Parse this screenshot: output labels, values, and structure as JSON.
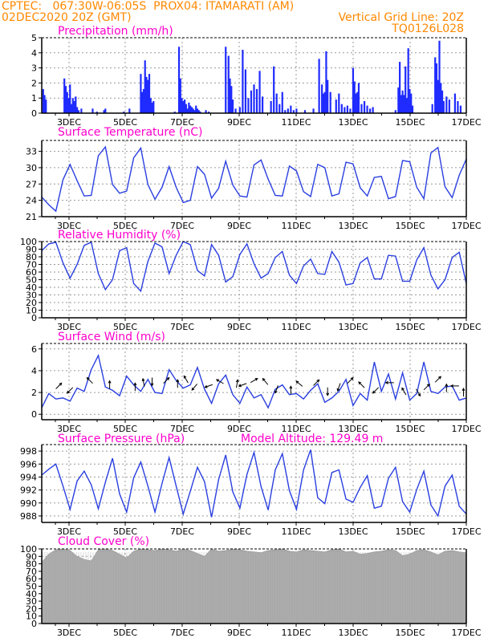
{
  "header": {
    "line1_left": "CPTEC:   067:30W-06:05S  PROX04: ITAMARATI (AM)",
    "line2_left": "02DEC2020 20Z (GMT)",
    "line2_right": "Vertical Grid Line: 20Z",
    "line3_right": "TQ0126L028"
  },
  "colors": {
    "header_text": "#ff8800",
    "title_text": "#ff00cc",
    "series_line": "#2a3fe0",
    "bar_blue": "#1f2bff",
    "cloud_gray": "#a8a8a8",
    "wind_arrow": "#000000"
  },
  "chart_data": [
    {
      "id": "precip",
      "type": "bar",
      "title": "Precipitation (mm/h)",
      "x_range": [
        0,
        15
      ],
      "x_ticks": [
        "3DEC",
        "5DEC",
        "7DEC",
        "9DEC",
        "11DEC",
        "13DEC",
        "15DEC",
        "17DEC"
      ],
      "ylim": [
        0,
        5
      ],
      "yticks": [
        0,
        1,
        2,
        3,
        4,
        5
      ],
      "grid": true,
      "x": [
        0.05,
        0.1,
        0.15,
        0.8,
        0.85,
        0.9,
        0.95,
        1.0,
        1.05,
        1.1,
        1.15,
        1.2,
        1.25,
        1.3,
        1.4,
        1.8,
        1.95,
        2.2,
        2.25,
        2.9,
        3.1,
        3.5,
        3.55,
        3.6,
        3.65,
        3.7,
        3.75,
        3.8,
        3.85,
        3.9,
        3.95,
        4.7,
        4.85,
        4.9,
        4.95,
        5.0,
        5.05,
        5.1,
        5.15,
        5.2,
        5.25,
        5.3,
        5.35,
        5.4,
        5.45,
        5.5,
        5.55,
        5.6,
        5.8,
        5.9,
        6.5,
        6.6,
        6.65,
        6.7,
        6.75,
        6.85,
        7.0,
        7.1,
        7.2,
        7.3,
        7.4,
        7.5,
        7.6,
        7.7,
        7.8,
        8.1,
        8.2,
        8.3,
        8.4,
        8.5,
        8.6,
        8.7,
        8.8,
        8.9,
        9.0,
        9.3,
        9.6,
        9.8,
        9.9,
        9.95,
        10.0,
        10.05,
        10.1,
        10.2,
        10.4,
        10.5,
        10.6,
        10.7,
        10.8,
        10.9,
        11.0,
        11.05,
        11.1,
        11.15,
        11.2,
        11.3,
        11.4,
        11.5,
        11.6,
        11.7,
        12.5,
        12.6,
        12.65,
        12.7,
        12.75,
        12.8,
        12.85,
        12.9,
        12.95,
        13.0,
        13.05,
        13.1,
        13.8,
        13.9,
        13.95,
        14.0,
        14.05,
        14.1,
        14.15,
        14.2,
        14.3,
        14.4,
        14.6,
        14.7,
        14.8
      ],
      "values": [
        1.6,
        1.2,
        0.9,
        2.3,
        1.8,
        1.4,
        1.0,
        1.9,
        0.6,
        1.0,
        0.8,
        1.1,
        0.4,
        0.2,
        0.3,
        0.3,
        0.1,
        0.2,
        0.3,
        0.1,
        0.3,
        2.6,
        1.4,
        1.6,
        3.5,
        2.4,
        2.2,
        2.6,
        1.0,
        0.7,
        0.8,
        0.1,
        4.4,
        2.3,
        1.0,
        0.8,
        0.9,
        0.6,
        0.3,
        0.7,
        0.5,
        0.4,
        0.3,
        0.2,
        0.5,
        0.3,
        0.2,
        0.1,
        0.2,
        0.1,
        4.4,
        3.8,
        2.3,
        1.8,
        0.9,
        0.3,
        0.4,
        4.2,
        2.9,
        1.0,
        1.5,
        1.9,
        1.6,
        2.8,
        1.1,
        0.8,
        3.1,
        1.3,
        0.6,
        1.4,
        0.2,
        0.3,
        0.5,
        0.2,
        0.3,
        0.2,
        0.3,
        3.6,
        1.9,
        1.3,
        1.4,
        4.1,
        2.2,
        1.4,
        0.9,
        1.3,
        0.6,
        0.4,
        0.5,
        0.3,
        3.0,
        2.1,
        1.3,
        1.4,
        2.0,
        0.6,
        0.8,
        0.5,
        0.3,
        0.4,
        0.2,
        1.7,
        3.4,
        1.2,
        1.5,
        1.2,
        3.1,
        1.0,
        4.3,
        1.6,
        1.3,
        0.5,
        0.6,
        3.7,
        3.3,
        2.2,
        4.8,
        2.0,
        1.5,
        0.8,
        1.1,
        0.9,
        1.3,
        0.8,
        0.5
      ]
    },
    {
      "id": "temp",
      "type": "line",
      "title": "Surface Temperature (nC)",
      "x_range": [
        0,
        15
      ],
      "x_ticks": [
        "3DEC",
        "5DEC",
        "7DEC",
        "9DEC",
        "11DEC",
        "13DEC",
        "15DEC",
        "17DEC"
      ],
      "ylim": [
        21,
        35
      ],
      "yticks": [
        21,
        24,
        27,
        30,
        33
      ],
      "grid": true,
      "x": [
        0,
        0.25,
        0.5,
        0.75,
        1.0,
        1.25,
        1.5,
        1.75,
        2.0,
        2.25,
        2.5,
        2.75,
        3.0,
        3.25,
        3.5,
        3.75,
        4.0,
        4.25,
        4.5,
        4.75,
        5.0,
        5.25,
        5.5,
        5.75,
        6.0,
        6.25,
        6.5,
        6.75,
        7.0,
        7.25,
        7.5,
        7.75,
        8.0,
        8.25,
        8.5,
        8.75,
        9.0,
        9.25,
        9.5,
        9.75,
        10.0,
        10.25,
        10.5,
        10.75,
        11.0,
        11.25,
        11.5,
        11.75,
        12.0,
        12.25,
        12.5,
        12.75,
        13.0,
        13.25,
        13.5,
        13.75,
        14.0,
        14.25,
        14.5,
        14.75,
        15.0
      ],
      "values": [
        24.6,
        23.2,
        22.0,
        27.8,
        30.6,
        27.6,
        24.8,
        24.9,
        32.2,
        33.8,
        26.9,
        25.3,
        25.7,
        31.8,
        33.6,
        26.9,
        24.2,
        26.4,
        30.2,
        26.4,
        23.6,
        24.0,
        30.2,
        28.8,
        24.4,
        26.2,
        31.2,
        26.8,
        24.8,
        24.6,
        30.5,
        31.4,
        27.9,
        24.9,
        24.8,
        30.3,
        29.4,
        25.6,
        24.7,
        30.6,
        30.0,
        24.8,
        25.2,
        31.0,
        30.7,
        26.3,
        24.8,
        28.2,
        28.4,
        24.3,
        24.7,
        31.3,
        31.1,
        26.4,
        24.3,
        32.7,
        33.7,
        26.5,
        24.5,
        28.6,
        31.6
      ]
    },
    {
      "id": "rh",
      "type": "line",
      "title": "Relative Humidity (%)",
      "x_range": [
        0,
        15
      ],
      "x_ticks": [
        "3DEC",
        "5DEC",
        "7DEC",
        "9DEC",
        "11DEC",
        "13DEC",
        "15DEC",
        "17DEC"
      ],
      "ylim": [
        0,
        100
      ],
      "yticks": [
        0,
        10,
        20,
        30,
        40,
        50,
        60,
        70,
        80,
        90,
        100
      ],
      "grid": true,
      "x": [
        0,
        0.25,
        0.5,
        0.75,
        1.0,
        1.25,
        1.5,
        1.75,
        2.0,
        2.25,
        2.5,
        2.75,
        3.0,
        3.25,
        3.5,
        3.75,
        4.0,
        4.25,
        4.5,
        4.75,
        5.0,
        5.25,
        5.5,
        5.75,
        6.0,
        6.25,
        6.5,
        6.75,
        7.0,
        7.25,
        7.5,
        7.75,
        8.0,
        8.25,
        8.5,
        8.75,
        9.0,
        9.25,
        9.5,
        9.75,
        10.0,
        10.25,
        10.5,
        10.75,
        11.0,
        11.25,
        11.5,
        11.75,
        12.0,
        12.25,
        12.5,
        12.75,
        13.0,
        13.25,
        13.5,
        13.75,
        14.0,
        14.25,
        14.5,
        14.75,
        15.0
      ],
      "values": [
        88,
        97,
        99,
        72,
        52,
        70,
        95,
        99,
        58,
        37,
        50,
        88,
        92,
        45,
        35,
        74,
        98,
        93,
        58,
        82,
        100,
        96,
        62,
        55,
        96,
        82,
        47,
        54,
        83,
        97,
        71,
        52,
        58,
        79,
        87,
        56,
        45,
        68,
        77,
        58,
        57,
        87,
        73,
        43,
        45,
        72,
        79,
        51,
        51,
        82,
        81,
        48,
        48,
        76,
        92,
        56,
        38,
        50,
        79,
        86,
        45
      ]
    },
    {
      "id": "wind",
      "type": "line",
      "title": "Surface Wind (m/s)",
      "x_range": [
        0,
        15
      ],
      "x_ticks": [
        "3DEC",
        "5DEC",
        "7DEC",
        "9DEC",
        "11DEC",
        "13DEC",
        "15DEC",
        "17DEC"
      ],
      "ylim": [
        -0.5,
        6.5
      ],
      "yticks": [
        0,
        2,
        4,
        6
      ],
      "grid": true,
      "x": [
        0,
        0.25,
        0.5,
        0.75,
        1.0,
        1.25,
        1.5,
        1.75,
        2.0,
        2.25,
        2.5,
        2.75,
        3.0,
        3.25,
        3.5,
        3.75,
        4.0,
        4.25,
        4.5,
        4.75,
        5.0,
        5.25,
        5.5,
        5.75,
        6.0,
        6.25,
        6.5,
        6.75,
        7.0,
        7.25,
        7.5,
        7.75,
        8.0,
        8.25,
        8.5,
        8.75,
        9.0,
        9.25,
        9.5,
        9.75,
        10.0,
        10.25,
        10.5,
        10.75,
        11.0,
        11.25,
        11.5,
        11.75,
        12.0,
        12.25,
        12.5,
        12.75,
        13.0,
        13.25,
        13.5,
        13.75,
        14.0,
        14.25,
        14.5,
        14.75,
        15.0
      ],
      "values": [
        0.6,
        1.9,
        1.4,
        1.5,
        1.2,
        2.4,
        2.1,
        4.1,
        5.4,
        2.5,
        2.2,
        1.7,
        3.5,
        2.7,
        2.1,
        3.2,
        2.0,
        1.9,
        4.1,
        3.1,
        2.4,
        2.7,
        4.3,
        2.3,
        1.0,
        2.8,
        3.6,
        1.8,
        1.0,
        2.5,
        1.5,
        1.8,
        0.6,
        2.3,
        2.7,
        1.8,
        1.9,
        1.4,
        2.2,
        2.8,
        1.1,
        1.5,
        2.1,
        3.2,
        0.8,
        1.9,
        1.3,
        4.8,
        2.1,
        3.7,
        1.4,
        3.8,
        1.3,
        1.9,
        4.8,
        2.1,
        1.9,
        2.5,
        2.6,
        1.3,
        1.5
      ],
      "arrows": {
        "x": [
          0.6,
          1.0,
          1.7,
          2.4,
          3.3,
          3.6,
          3.9,
          4.4,
          4.8,
          5.1,
          5.4,
          5.9,
          6.3,
          6.9,
          7.1,
          7.5,
          7.9,
          8.3,
          8.8,
          9.1,
          9.7,
          10.1,
          10.5,
          10.9,
          11.3,
          11.8,
          12.3,
          12.8,
          13.3,
          13.6,
          14.0,
          14.3,
          14.6,
          14.9
        ],
        "y": [
          2.6,
          2.2,
          3.1,
          2.7,
          2.5,
          2.9,
          3.0,
          3.1,
          2.8,
          3.2,
          2.5,
          2.6,
          3.0,
          2.8,
          2.7,
          3.1,
          3.0,
          2.3,
          2.2,
          2.8,
          2.9,
          2.1,
          2.5,
          3.1,
          2.7,
          2.2,
          2.9,
          2.1,
          2.0,
          2.5,
          3.2,
          2.4,
          2.6,
          2.0
        ],
        "dir_deg": [
          45,
          225,
          135,
          90,
          90,
          100,
          270,
          45,
          90,
          120,
          230,
          200,
          150,
          80,
          200,
          30,
          130,
          250,
          90,
          140,
          45,
          270,
          250,
          45,
          135,
          225,
          180,
          120,
          300,
          45,
          45,
          90,
          180,
          90
        ]
      }
    },
    {
      "id": "pressure",
      "type": "line",
      "title": "Surface Pressure (hPa)",
      "annotation": "Model Altitude: 129.49 m",
      "x_range": [
        0,
        15
      ],
      "x_ticks": [
        "3DEC",
        "5DEC",
        "7DEC",
        "9DEC",
        "11DEC",
        "13DEC",
        "15DEC",
        "17DEC"
      ],
      "ylim": [
        987,
        999
      ],
      "yticks": [
        988,
        990,
        992,
        994,
        996,
        998
      ],
      "grid": true,
      "x": [
        0,
        0.25,
        0.5,
        0.75,
        1.0,
        1.25,
        1.5,
        1.75,
        2.0,
        2.25,
        2.5,
        2.75,
        3.0,
        3.25,
        3.5,
        3.75,
        4.0,
        4.25,
        4.5,
        4.75,
        5.0,
        5.25,
        5.5,
        5.75,
        6.0,
        6.25,
        6.5,
        6.75,
        7.0,
        7.25,
        7.5,
        7.75,
        8.0,
        8.25,
        8.5,
        8.75,
        9.0,
        9.25,
        9.5,
        9.75,
        10.0,
        10.25,
        10.5,
        10.75,
        11.0,
        11.25,
        11.5,
        11.75,
        12.0,
        12.25,
        12.5,
        12.75,
        13.0,
        13.25,
        13.5,
        13.75,
        14.0,
        14.25,
        14.5,
        14.75,
        15.0
      ],
      "values": [
        994.3,
        995.2,
        996.0,
        992.6,
        989.0,
        993.4,
        994.9,
        992.8,
        989.1,
        993.2,
        996.9,
        991.4,
        988.6,
        993.9,
        996.3,
        992.6,
        988.6,
        993.0,
        997.0,
        992.6,
        988.3,
        991.8,
        995.5,
        993.3,
        987.8,
        993.6,
        997.4,
        991.7,
        989.2,
        994.4,
        997.8,
        992.5,
        988.9,
        995.1,
        997.6,
        991.9,
        989.0,
        995.1,
        998.2,
        990.8,
        989.9,
        994.7,
        995.1,
        990.6,
        990.1,
        992.4,
        994.2,
        989.2,
        989.5,
        993.8,
        995.5,
        990.2,
        988.6,
        992.1,
        994.9,
        989.7,
        988.0,
        992.6,
        994.3,
        989.5,
        988.3
      ]
    },
    {
      "id": "cloud",
      "type": "area",
      "title": "Cloud Cover (%)",
      "x_range": [
        0,
        15
      ],
      "x_ticks": [
        "3DEC",
        "5DEC",
        "7DEC",
        "9DEC",
        "11DEC",
        "13DEC",
        "15DEC",
        "17DEC"
      ],
      "ylim": [
        0,
        100
      ],
      "yticks": [
        0,
        10,
        20,
        30,
        40,
        50,
        60,
        70,
        80,
        90,
        100
      ],
      "grid": true,
      "x": [
        0,
        0.25,
        0.5,
        0.75,
        1.0,
        1.25,
        1.5,
        1.75,
        2.0,
        2.25,
        2.5,
        2.75,
        3.0,
        3.25,
        3.5,
        3.75,
        4.0,
        4.25,
        4.5,
        4.75,
        5.0,
        5.25,
        5.5,
        5.75,
        6.0,
        6.25,
        6.5,
        6.75,
        7.0,
        7.25,
        7.5,
        7.75,
        8.0,
        8.25,
        8.5,
        8.75,
        9.0,
        9.25,
        9.5,
        9.75,
        10.0,
        10.25,
        10.5,
        10.75,
        11.0,
        11.25,
        11.5,
        11.75,
        12.0,
        12.25,
        12.5,
        12.75,
        13.0,
        13.25,
        13.5,
        13.75,
        14.0,
        14.25,
        14.5,
        14.75,
        15.0
      ],
      "values": [
        82,
        93,
        99,
        100,
        98,
        90,
        86,
        84,
        99,
        100,
        98,
        93,
        88,
        97,
        100,
        99,
        98,
        100,
        99,
        97,
        100,
        98,
        94,
        90,
        100,
        97,
        98,
        100,
        99,
        97,
        96,
        95,
        98,
        99,
        100,
        97,
        96,
        99,
        98,
        97,
        96,
        99,
        100,
        96,
        97,
        93,
        94,
        96,
        97,
        99,
        98,
        91,
        93,
        98,
        99,
        96,
        92,
        97,
        98,
        96,
        95
      ]
    }
  ]
}
